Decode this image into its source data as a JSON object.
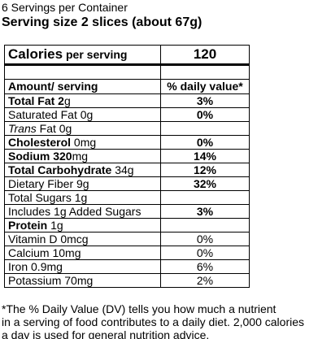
{
  "header": {
    "servings_per_container": "6 Servings per Container",
    "serving_size": "Serving size 2 slices (about 67g)"
  },
  "calories": {
    "label": "Calories",
    "sub_label": " per serving",
    "value": "120"
  },
  "table_header": {
    "amount": "Amount/ serving",
    "daily_value": "% daily value*"
  },
  "nutrients": [
    {
      "name": "Total Fat 2",
      "unit": "g",
      "dv": "3%",
      "name_bold": true,
      "dv_bold": true
    },
    {
      "name": "Saturated Fat 0g",
      "unit": "",
      "dv": "0%",
      "name_bold": false,
      "dv_bold": true
    },
    {
      "name_italic": "Trans",
      "name": " Fat 0g",
      "unit": "",
      "dv": "",
      "name_bold": false,
      "dv_bold": false
    },
    {
      "name": "Cholesterol",
      "unit": " 0mg",
      "dv": "0%",
      "name_bold": true,
      "dv_bold": true
    },
    {
      "name": "Sodium 320",
      "unit": "mg",
      "dv": "14%",
      "name_bold": true,
      "dv_bold": true
    },
    {
      "name": "Total Carbohydrate",
      "unit": " 34g",
      "dv": "12%",
      "name_bold": true,
      "dv_bold": true
    },
    {
      "name": "Dietary Fiber 9g",
      "unit": "",
      "dv": "32%",
      "name_bold": false,
      "dv_bold": true
    },
    {
      "name": "Total Sugars 1g",
      "unit": "",
      "dv": "",
      "name_bold": false,
      "dv_bold": false
    },
    {
      "name": "Includes 1g Added Sugars",
      "unit": "",
      "dv": "3%",
      "name_bold": false,
      "dv_bold": true
    },
    {
      "name": "Protein",
      "unit": " 1g",
      "dv": "",
      "name_bold": true,
      "dv_bold": false
    },
    {
      "name": "Vitamin D 0mcg",
      "unit": "",
      "dv": "0%",
      "name_bold": false,
      "dv_bold": false
    },
    {
      "name": "Calcium 10mg",
      "unit": "",
      "dv": "0%",
      "name_bold": false,
      "dv_bold": false
    },
    {
      "name": "Iron 0.9mg",
      "unit": "",
      "dv": "6%",
      "name_bold": false,
      "dv_bold": false
    },
    {
      "name": "Potassium 70mg",
      "unit": "",
      "dv": "2%",
      "name_bold": false,
      "dv_bold": false
    }
  ],
  "footnote": {
    "line1": "*The % Daily Value (DV) tells you how much a nutrient",
    "line2": "in a serving of food contributes to a daily diet. 2,000 calories",
    "line3": "a day is used for general nutrition advice."
  }
}
